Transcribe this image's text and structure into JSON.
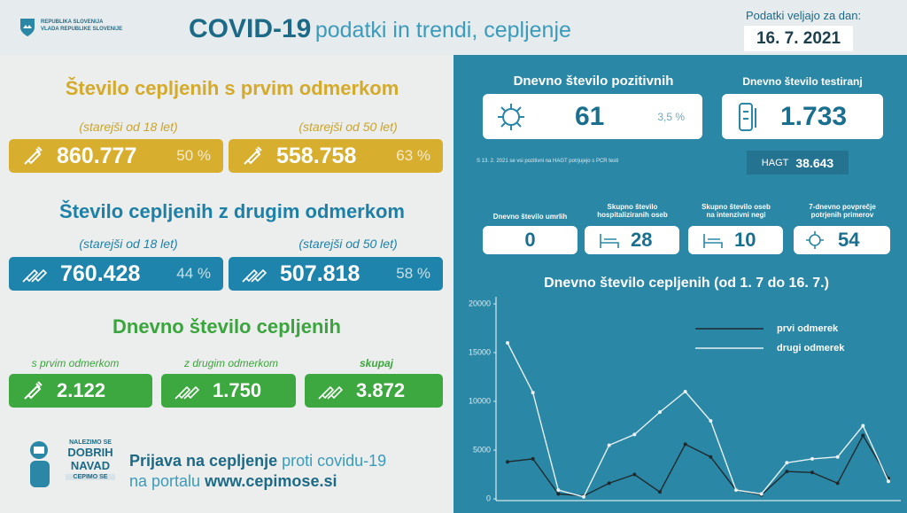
{
  "header": {
    "gov_lines": [
      "REPUBLIKA SLOVENIJA",
      "VLADA REPUBLIKE SLOVENIJE"
    ],
    "title": "COVID-19",
    "subtitle": "podatki in trendi, cepljenje",
    "date_label": "Podatki veljajo za dan:",
    "date": "16. 7. 2021"
  },
  "first_dose": {
    "title": "Število cepljenih s prvim odmerkom",
    "groups": [
      {
        "label": "(starejši od 18 let)",
        "value": "860.777",
        "percent": "50 %"
      },
      {
        "label": "(starejši od 50 let)",
        "value": "558.758",
        "percent": "63 %"
      }
    ]
  },
  "second_dose": {
    "title": "Število cepljenih z drugim odmerkom",
    "groups": [
      {
        "label": "(starejši od 18 let)",
        "value": "760.428",
        "percent": "44 %"
      },
      {
        "label": "(starejši od 50 let)",
        "value": "507.818",
        "percent": "58 %"
      }
    ]
  },
  "daily": {
    "title": "Dnevno število cepljenih",
    "items": [
      {
        "label": "s prvim odmerkom",
        "value": "2.122"
      },
      {
        "label": "z drugim odmerkom",
        "value": "1.750"
      },
      {
        "label": "skupaj",
        "value": "3.872"
      }
    ]
  },
  "footer": {
    "logo": [
      "NALEZIMO SE",
      "DOBRIH",
      "NAVAD",
      "CEPIMO SE"
    ],
    "line1_bold": "Prijava na cepljenje",
    "line1_rest": "proti covidu-19",
    "line2_rest": "na portalu",
    "line2_bold": "www.cepimose.si"
  },
  "positives": {
    "title": "Dnevno število pozitivnih",
    "value": "61",
    "percent": "3,5 %",
    "note": "S 13. 2. 2021 se vsi pozitivni na HAGT potrjujejo s PCR testi"
  },
  "tests": {
    "title": "Dnevno število testiranj",
    "value": "1.733",
    "hagt_label": "HAGT",
    "hagt_value": "38.643"
  },
  "stats": [
    {
      "label": "Dnevno število umrlih",
      "value": "0"
    },
    {
      "label": "Skupno število hospitaliziranih oseb",
      "value": "28"
    },
    {
      "label": "Skupno število oseb na intenzivni negi",
      "value": "10"
    },
    {
      "label": "7-dnevno povprečje potrjenih primerov",
      "value": "54"
    }
  ],
  "chart_data": {
    "type": "line",
    "title": "Dnevno število cepljenih (od 1. 7 do 16. 7.)",
    "categories": [
      null,
      null,
      null,
      null,
      null,
      null,
      null,
      null,
      null,
      null,
      null,
      null,
      null,
      null,
      null,
      null
    ],
    "series": [
      {
        "name": "prvi odmerek",
        "color": "#1e2a2e",
        "values": [
          3800,
          4100,
          500,
          300,
          1600,
          2500,
          700,
          5600,
          4300,
          900,
          400,
          2800,
          2700,
          1600,
          6500,
          2100
        ]
      },
      {
        "name": "drugi odmerek",
        "color": "#e8f1f4",
        "values": [
          16000,
          10900,
          900,
          200,
          5500,
          6600,
          8900,
          11000,
          8000,
          900,
          500,
          3700,
          4100,
          4300,
          7500,
          1800
        ]
      }
    ],
    "ylim": [
      0,
      20000
    ],
    "yticks": [
      0,
      5000,
      10000,
      15000,
      20000
    ],
    "grid": false,
    "legend": "top-right"
  }
}
